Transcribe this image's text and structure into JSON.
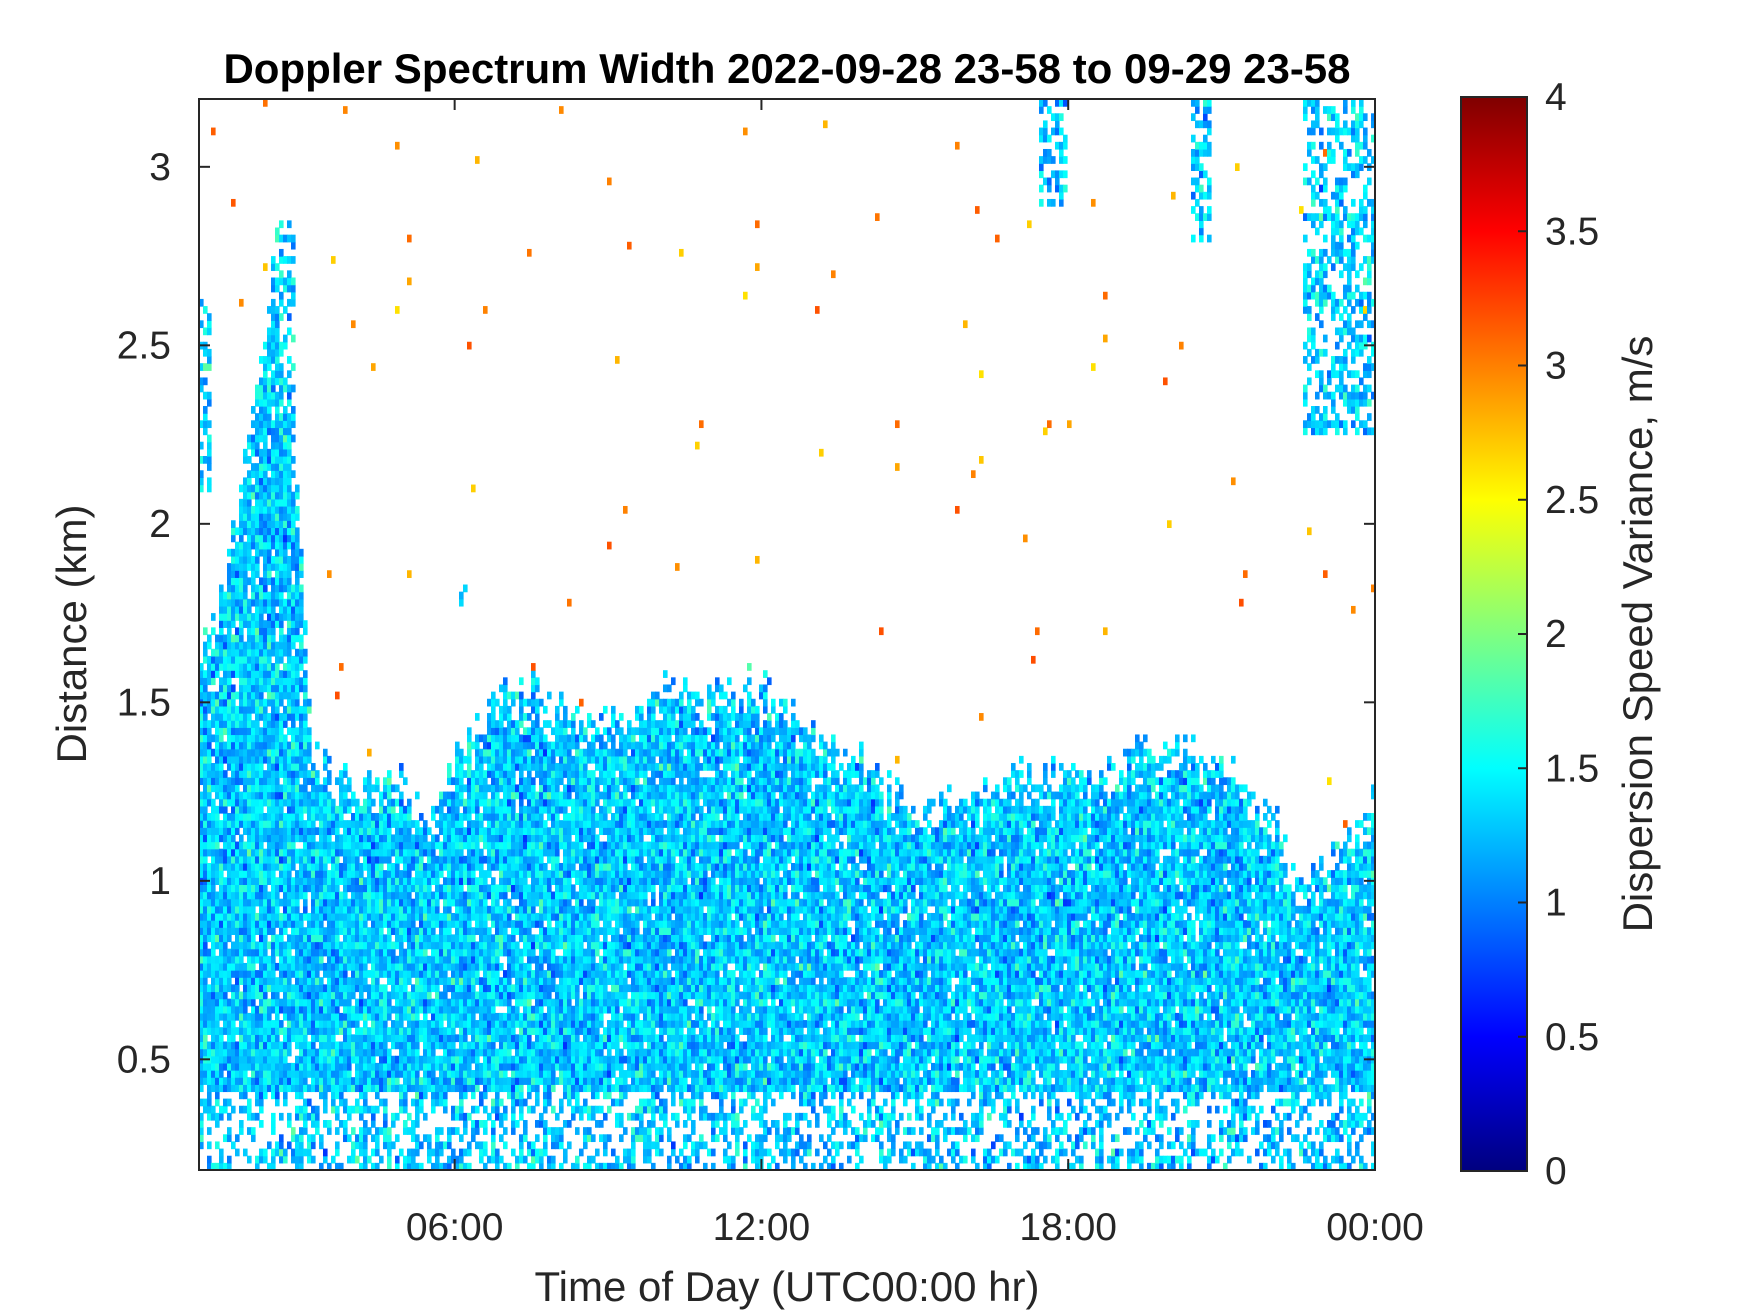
{
  "chart_data": {
    "type": "heatmap",
    "title": "Doppler Spectrum Width 2022-09-28 23-58 to 09-29 23-58",
    "xlabel": "Time of Day (UTC00:00 hr)",
    "ylabel": "Distance (km)",
    "colorbar_label": "Dispersion Speed Variance, m/s",
    "colormap": "jet",
    "xlim_hours": [
      1.0,
      24.0
    ],
    "ylim": [
      0.19,
      3.19
    ],
    "clim": [
      0,
      4
    ],
    "x_ticks": [
      {
        "value": 6,
        "label": "06:00"
      },
      {
        "value": 12,
        "label": "12:00"
      },
      {
        "value": 18,
        "label": "18:00"
      },
      {
        "value": 24,
        "label": "00:00"
      }
    ],
    "y_ticks": [
      {
        "value": 0.5,
        "label": "0.5"
      },
      {
        "value": 1,
        "label": "1"
      },
      {
        "value": 1.5,
        "label": "1.5"
      },
      {
        "value": 2,
        "label": "2"
      },
      {
        "value": 2.5,
        "label": "2.5"
      },
      {
        "value": 3,
        "label": "3"
      }
    ],
    "colorbar_ticks": [
      {
        "value": 0,
        "label": "0"
      },
      {
        "value": 0.5,
        "label": "0.5"
      },
      {
        "value": 1,
        "label": "1"
      },
      {
        "value": 1.5,
        "label": "1.5"
      },
      {
        "value": 2,
        "label": "2"
      },
      {
        "value": 2.5,
        "label": "2.5"
      },
      {
        "value": 3,
        "label": "3"
      },
      {
        "value": 3.5,
        "label": "3.5"
      },
      {
        "value": 4,
        "label": "4"
      }
    ],
    "typical_value": 1.3,
    "echo_top_profile": [
      {
        "t": 1.0,
        "top": 1.65
      },
      {
        "t": 1.5,
        "top": 1.85
      },
      {
        "t": 2.0,
        "top": 2.3
      },
      {
        "t": 2.5,
        "top": 2.7
      },
      {
        "t": 3.0,
        "top": 2.0
      },
      {
        "t": 3.2,
        "top": 1.35
      },
      {
        "t": 4.0,
        "top": 1.3
      },
      {
        "t": 5.0,
        "top": 1.3
      },
      {
        "t": 5.5,
        "top": 1.15
      },
      {
        "t": 6.0,
        "top": 1.35
      },
      {
        "t": 7.0,
        "top": 1.55
      },
      {
        "t": 7.5,
        "top": 1.55
      },
      {
        "t": 8.0,
        "top": 1.5
      },
      {
        "t": 9.0,
        "top": 1.45
      },
      {
        "t": 10.0,
        "top": 1.55
      },
      {
        "t": 11.0,
        "top": 1.55
      },
      {
        "t": 12.0,
        "top": 1.58
      },
      {
        "t": 12.5,
        "top": 1.5
      },
      {
        "t": 13.0,
        "top": 1.42
      },
      {
        "t": 14.0,
        "top": 1.35
      },
      {
        "t": 15.0,
        "top": 1.2
      },
      {
        "t": 16.0,
        "top": 1.25
      },
      {
        "t": 17.0,
        "top": 1.3
      },
      {
        "t": 18.0,
        "top": 1.32
      },
      {
        "t": 19.0,
        "top": 1.35
      },
      {
        "t": 20.0,
        "top": 1.4
      },
      {
        "t": 21.0,
        "top": 1.35
      },
      {
        "t": 22.0,
        "top": 1.2
      },
      {
        "t": 22.5,
        "top": 1.0
      },
      {
        "t": 23.0,
        "top": 1.05
      },
      {
        "t": 24.0,
        "top": 1.25
      }
    ],
    "upper_patches": [
      {
        "t_start": 1.0,
        "t_end": 1.25,
        "bottom": 2.1,
        "top": 2.65
      },
      {
        "t_start": 2.4,
        "t_end": 2.9,
        "bottom": 2.0,
        "top": 2.85
      },
      {
        "t_start": 6.1,
        "t_end": 6.3,
        "bottom": 1.75,
        "top": 1.85
      },
      {
        "t_start": 17.4,
        "t_end": 18.0,
        "bottom": 2.9,
        "top": 3.19
      },
      {
        "t_start": 20.4,
        "t_end": 20.8,
        "bottom": 2.8,
        "top": 3.19
      },
      {
        "t_start": 22.6,
        "t_end": 24.0,
        "bottom": 2.25,
        "top": 3.19
      }
    ]
  }
}
